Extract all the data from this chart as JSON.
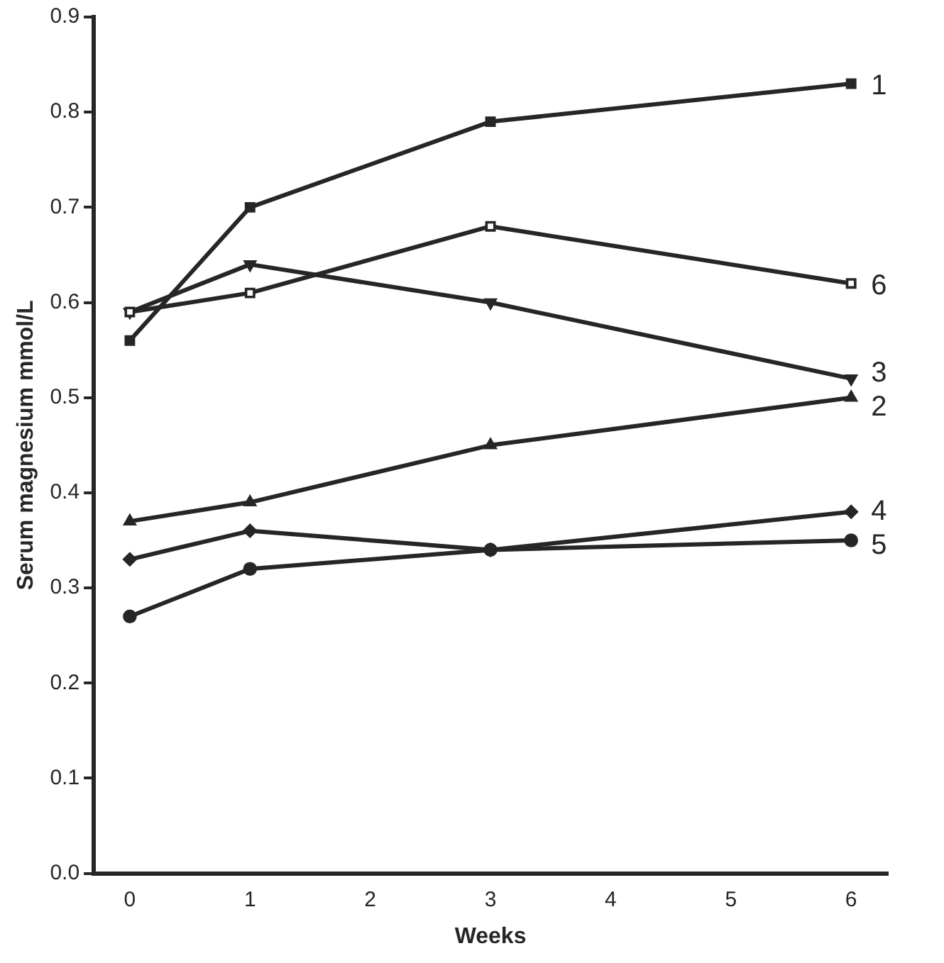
{
  "chart_data": {
    "type": "line",
    "xlabel": "Weeks",
    "ylabel": "Serum magnesium mmol/L",
    "x": [
      0,
      1,
      3,
      6
    ],
    "series": [
      {
        "name": "1",
        "color": "#262626",
        "marker": "square",
        "values": [
          0.56,
          0.7,
          0.79,
          0.83
        ]
      },
      {
        "name": "6",
        "color": "#262626",
        "marker": "square_open",
        "values": [
          0.59,
          0.61,
          0.68,
          0.62
        ]
      },
      {
        "name": "3",
        "color": "#262626",
        "marker": "triangle_down",
        "values": [
          0.59,
          0.64,
          0.6,
          0.52
        ]
      },
      {
        "name": "2",
        "color": "#262626",
        "marker": "triangle",
        "values": [
          0.37,
          0.39,
          0.45,
          0.5
        ]
      },
      {
        "name": "4",
        "color": "#262626",
        "marker": "diamond",
        "values": [
          0.33,
          0.36,
          0.34,
          0.38
        ]
      },
      {
        "name": "5",
        "color": "#262626",
        "marker": "circle",
        "values": [
          0.27,
          0.32,
          0.34,
          0.35
        ]
      }
    ],
    "xlim": [
      -0.3,
      6.3
    ],
    "xticks": [
      0,
      1,
      2,
      3,
      4,
      5,
      6
    ],
    "ylim": [
      0,
      0.9
    ],
    "yticks": [
      {
        "value": 0,
        "label": "0.0"
      },
      {
        "value": 0.1,
        "label": "0.1"
      },
      {
        "value": 0.2,
        "label": "0.2"
      },
      {
        "value": 0.3,
        "label": "0.3"
      },
      {
        "value": 0.4,
        "label": "0.4"
      },
      {
        "value": 0.5,
        "label": "0.5"
      },
      {
        "value": 0.6,
        "label": "0.6"
      },
      {
        "value": 0.7,
        "label": "0.7"
      },
      {
        "value": 0.8,
        "label": "0.8"
      },
      {
        "value": 0.9,
        "label": "0.9"
      }
    ],
    "grid": false,
    "legend": false,
    "line_style": "solid"
  }
}
